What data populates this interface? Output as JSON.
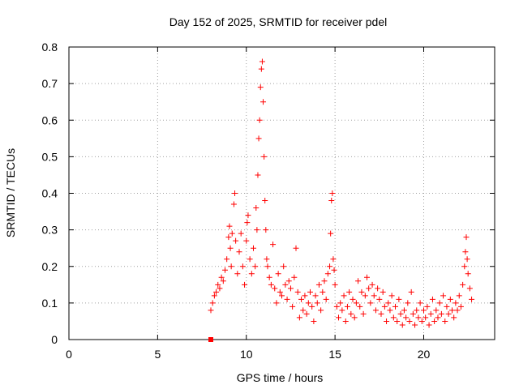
{
  "chart_data": {
    "type": "scatter",
    "title": "Day 152 of 2025, SRMTID for receiver pdel",
    "xlabel": "GPS time / hours",
    "ylabel": "SRMTID / TECUs",
    "xlim": [
      0,
      24
    ],
    "ylim": [
      0,
      0.8
    ],
    "x_ticks": [
      0,
      5,
      10,
      15,
      20
    ],
    "x_tick_labels": [
      "0",
      "5",
      "10",
      "15",
      "20"
    ],
    "y_ticks": [
      0,
      0.1,
      0.2,
      0.3,
      0.4,
      0.5,
      0.6,
      0.7,
      0.8
    ],
    "y_tick_labels": [
      "0",
      "0.1",
      "0.2",
      "0.3",
      "0.4",
      "0.5",
      "0.6",
      "0.7",
      "0.8"
    ],
    "grid": true,
    "marker": "plus",
    "marker_color": "#ff0000",
    "zero_marker": {
      "x": 8.0,
      "y": 0.0
    },
    "series": [
      {
        "name": "SRMTID",
        "points": [
          [
            8.0,
            0.08
          ],
          [
            8.1,
            0.1
          ],
          [
            8.2,
            0.12
          ],
          [
            8.3,
            0.13
          ],
          [
            8.4,
            0.15
          ],
          [
            8.5,
            0.14
          ],
          [
            8.6,
            0.17
          ],
          [
            8.7,
            0.16
          ],
          [
            8.8,
            0.19
          ],
          [
            8.9,
            0.22
          ],
          [
            9.0,
            0.28
          ],
          [
            9.05,
            0.31
          ],
          [
            9.1,
            0.25
          ],
          [
            9.15,
            0.2
          ],
          [
            9.2,
            0.29
          ],
          [
            9.3,
            0.37
          ],
          [
            9.35,
            0.4
          ],
          [
            9.4,
            0.27
          ],
          [
            9.5,
            0.18
          ],
          [
            9.6,
            0.24
          ],
          [
            9.7,
            0.29
          ],
          [
            9.8,
            0.2
          ],
          [
            9.9,
            0.15
          ],
          [
            10.0,
            0.27
          ],
          [
            10.05,
            0.32
          ],
          [
            10.1,
            0.34
          ],
          [
            10.2,
            0.22
          ],
          [
            10.3,
            0.18
          ],
          [
            10.4,
            0.25
          ],
          [
            10.5,
            0.2
          ],
          [
            10.55,
            0.36
          ],
          [
            10.6,
            0.3
          ],
          [
            10.65,
            0.45
          ],
          [
            10.7,
            0.55
          ],
          [
            10.75,
            0.6
          ],
          [
            10.8,
            0.69
          ],
          [
            10.85,
            0.74
          ],
          [
            10.9,
            0.76
          ],
          [
            10.95,
            0.65
          ],
          [
            11.0,
            0.5
          ],
          [
            11.05,
            0.38
          ],
          [
            11.1,
            0.3
          ],
          [
            11.15,
            0.22
          ],
          [
            11.2,
            0.2
          ],
          [
            11.3,
            0.17
          ],
          [
            11.4,
            0.15
          ],
          [
            11.5,
            0.26
          ],
          [
            11.6,
            0.14
          ],
          [
            11.7,
            0.1
          ],
          [
            11.8,
            0.18
          ],
          [
            11.9,
            0.13
          ],
          [
            12.0,
            0.12
          ],
          [
            12.1,
            0.2
          ],
          [
            12.2,
            0.15
          ],
          [
            12.3,
            0.11
          ],
          [
            12.4,
            0.16
          ],
          [
            12.5,
            0.14
          ],
          [
            12.6,
            0.09
          ],
          [
            12.7,
            0.17
          ],
          [
            12.8,
            0.25
          ],
          [
            12.9,
            0.13
          ],
          [
            13.0,
            0.06
          ],
          [
            13.1,
            0.11
          ],
          [
            13.2,
            0.08
          ],
          [
            13.3,
            0.12
          ],
          [
            13.4,
            0.07
          ],
          [
            13.5,
            0.1
          ],
          [
            13.6,
            0.13
          ],
          [
            13.7,
            0.09
          ],
          [
            13.8,
            0.05
          ],
          [
            13.9,
            0.12
          ],
          [
            14.0,
            0.1
          ],
          [
            14.1,
            0.15
          ],
          [
            14.2,
            0.08
          ],
          [
            14.3,
            0.13
          ],
          [
            14.4,
            0.16
          ],
          [
            14.5,
            0.11
          ],
          [
            14.6,
            0.18
          ],
          [
            14.7,
            0.2
          ],
          [
            14.75,
            0.29
          ],
          [
            14.8,
            0.38
          ],
          [
            14.85,
            0.4
          ],
          [
            14.9,
            0.22
          ],
          [
            14.95,
            0.19
          ],
          [
            15.0,
            0.15
          ],
          [
            15.1,
            0.09
          ],
          [
            15.2,
            0.06
          ],
          [
            15.3,
            0.1
          ],
          [
            15.4,
            0.08
          ],
          [
            15.5,
            0.12
          ],
          [
            15.6,
            0.05
          ],
          [
            15.7,
            0.09
          ],
          [
            15.8,
            0.13
          ],
          [
            15.9,
            0.07
          ],
          [
            16.0,
            0.11
          ],
          [
            16.1,
            0.06
          ],
          [
            16.2,
            0.1
          ],
          [
            16.3,
            0.16
          ],
          [
            16.4,
            0.09
          ],
          [
            16.5,
            0.13
          ],
          [
            16.6,
            0.07
          ],
          [
            16.7,
            0.12
          ],
          [
            16.8,
            0.17
          ],
          [
            16.9,
            0.14
          ],
          [
            17.0,
            0.1
          ],
          [
            17.1,
            0.15
          ],
          [
            17.2,
            0.12
          ],
          [
            17.3,
            0.08
          ],
          [
            17.4,
            0.14
          ],
          [
            17.5,
            0.11
          ],
          [
            17.6,
            0.07
          ],
          [
            17.7,
            0.13
          ],
          [
            17.8,
            0.09
          ],
          [
            17.9,
            0.05
          ],
          [
            18.0,
            0.1
          ],
          [
            18.1,
            0.08
          ],
          [
            18.2,
            0.12
          ],
          [
            18.3,
            0.06
          ],
          [
            18.4,
            0.09
          ],
          [
            18.5,
            0.05
          ],
          [
            18.6,
            0.11
          ],
          [
            18.7,
            0.07
          ],
          [
            18.8,
            0.04
          ],
          [
            18.9,
            0.08
          ],
          [
            19.0,
            0.06
          ],
          [
            19.1,
            0.1
          ],
          [
            19.2,
            0.05
          ],
          [
            19.3,
            0.13
          ],
          [
            19.4,
            0.07
          ],
          [
            19.5,
            0.04
          ],
          [
            19.6,
            0.08
          ],
          [
            19.7,
            0.06
          ],
          [
            19.8,
            0.1
          ],
          [
            19.9,
            0.05
          ],
          [
            20.0,
            0.08
          ],
          [
            20.1,
            0.06
          ],
          [
            20.2,
            0.09
          ],
          [
            20.3,
            0.04
          ],
          [
            20.4,
            0.07
          ],
          [
            20.5,
            0.11
          ],
          [
            20.6,
            0.05
          ],
          [
            20.7,
            0.08
          ],
          [
            20.8,
            0.06
          ],
          [
            20.9,
            0.1
          ],
          [
            21.0,
            0.07
          ],
          [
            21.1,
            0.12
          ],
          [
            21.2,
            0.05
          ],
          [
            21.3,
            0.09
          ],
          [
            21.4,
            0.07
          ],
          [
            21.5,
            0.11
          ],
          [
            21.6,
            0.08
          ],
          [
            21.7,
            0.06
          ],
          [
            21.8,
            0.1
          ],
          [
            21.9,
            0.08
          ],
          [
            22.0,
            0.12
          ],
          [
            22.1,
            0.09
          ],
          [
            22.2,
            0.15
          ],
          [
            22.3,
            0.2
          ],
          [
            22.35,
            0.24
          ],
          [
            22.4,
            0.28
          ],
          [
            22.45,
            0.22
          ],
          [
            22.5,
            0.18
          ],
          [
            22.6,
            0.14
          ],
          [
            22.7,
            0.11
          ]
        ]
      }
    ]
  }
}
